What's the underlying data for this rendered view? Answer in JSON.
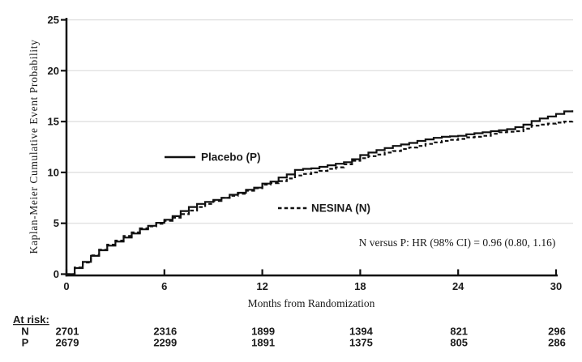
{
  "chart_data": {
    "type": "line",
    "subtype": "kaplan-meier-step",
    "title": "",
    "ylabel": "Kaplan-Meier Cumulative Event Probability",
    "xlabel": "Months from Randomization",
    "ylim": [
      0,
      25
    ],
    "xlim": [
      0,
      30
    ],
    "yticks": [
      0,
      5,
      10,
      15,
      20,
      25
    ],
    "xticks": [
      0,
      6,
      12,
      18,
      24,
      30
    ],
    "grid": "horizontal",
    "legend_position": "inside-plot",
    "annotation": "N versus P: HR (98% CI) = 0.96 (0.80, 1.16)",
    "colors": {
      "line": "#111111",
      "grid": "#dcdcdc",
      "text": "#1a1a1a",
      "background": "#ffffff"
    },
    "series": [
      {
        "name": "Placebo (P)",
        "line_style": "solid",
        "points": [
          [
            0,
            0
          ],
          [
            0.5,
            0.6
          ],
          [
            1,
            1.2
          ],
          [
            1.5,
            1.8
          ],
          [
            2,
            2.35
          ],
          [
            2.5,
            2.8
          ],
          [
            3,
            3.2
          ],
          [
            3.5,
            3.6
          ],
          [
            4,
            4.0
          ],
          [
            4.5,
            4.4
          ],
          [
            5,
            4.75
          ],
          [
            5.5,
            5.05
          ],
          [
            6,
            5.35
          ],
          [
            6.5,
            5.7
          ],
          [
            7,
            6.2
          ],
          [
            7.5,
            6.6
          ],
          [
            8,
            6.9
          ],
          [
            8.5,
            7.1
          ],
          [
            9,
            7.3
          ],
          [
            9.5,
            7.5
          ],
          [
            10,
            7.8
          ],
          [
            10.5,
            8.0
          ],
          [
            11,
            8.3
          ],
          [
            11.5,
            8.5
          ],
          [
            12,
            8.9
          ],
          [
            12.5,
            9.1
          ],
          [
            13,
            9.5
          ],
          [
            13.5,
            9.8
          ],
          [
            14,
            10.25
          ],
          [
            14.5,
            10.35
          ],
          [
            15,
            10.4
          ],
          [
            15.5,
            10.55
          ],
          [
            16,
            10.7
          ],
          [
            16.5,
            10.85
          ],
          [
            17,
            11.0
          ],
          [
            17.5,
            11.3
          ],
          [
            18,
            11.7
          ],
          [
            18.5,
            11.95
          ],
          [
            19,
            12.2
          ],
          [
            19.5,
            12.4
          ],
          [
            20,
            12.6
          ],
          [
            20.5,
            12.75
          ],
          [
            21,
            12.9
          ],
          [
            21.5,
            13.1
          ],
          [
            22,
            13.25
          ],
          [
            22.5,
            13.4
          ],
          [
            23,
            13.5
          ],
          [
            23.5,
            13.55
          ],
          [
            24,
            13.6
          ],
          [
            24.5,
            13.75
          ],
          [
            25,
            13.85
          ],
          [
            25.5,
            13.95
          ],
          [
            26,
            14.05
          ],
          [
            26.5,
            14.15
          ],
          [
            27,
            14.25
          ],
          [
            27.5,
            14.45
          ],
          [
            28,
            14.7
          ],
          [
            28.5,
            15.05
          ],
          [
            29,
            15.3
          ],
          [
            29.5,
            15.5
          ],
          [
            30,
            15.75
          ],
          [
            30.5,
            16.0
          ],
          [
            31,
            16.1
          ]
        ]
      },
      {
        "name": "NESINA (N)",
        "line_style": "dashed",
        "points": [
          [
            0,
            0
          ],
          [
            0.5,
            0.65
          ],
          [
            1,
            1.15
          ],
          [
            1.5,
            1.85
          ],
          [
            2,
            2.4
          ],
          [
            2.5,
            2.9
          ],
          [
            3,
            3.3
          ],
          [
            3.5,
            3.75
          ],
          [
            4,
            4.1
          ],
          [
            4.5,
            4.5
          ],
          [
            5,
            4.7
          ],
          [
            5.5,
            4.95
          ],
          [
            6,
            5.25
          ],
          [
            6.5,
            5.55
          ],
          [
            7,
            5.9
          ],
          [
            7.5,
            6.25
          ],
          [
            8,
            6.6
          ],
          [
            8.5,
            6.9
          ],
          [
            9,
            7.2
          ],
          [
            9.5,
            7.5
          ],
          [
            10,
            7.7
          ],
          [
            10.5,
            7.9
          ],
          [
            11,
            8.2
          ],
          [
            11.5,
            8.45
          ],
          [
            12,
            8.8
          ],
          [
            12.5,
            8.95
          ],
          [
            13,
            9.15
          ],
          [
            13.5,
            9.4
          ],
          [
            14,
            9.7
          ],
          [
            14.5,
            9.85
          ],
          [
            15,
            10.0
          ],
          [
            15.5,
            10.15
          ],
          [
            16,
            10.35
          ],
          [
            16.5,
            10.5
          ],
          [
            17,
            10.8
          ],
          [
            17.5,
            11.15
          ],
          [
            18,
            11.4
          ],
          [
            18.5,
            11.6
          ],
          [
            19,
            11.75
          ],
          [
            19.5,
            11.95
          ],
          [
            20,
            12.1
          ],
          [
            20.5,
            12.3
          ],
          [
            21,
            12.45
          ],
          [
            21.5,
            12.6
          ],
          [
            22,
            12.8
          ],
          [
            22.5,
            12.95
          ],
          [
            23,
            13.1
          ],
          [
            23.5,
            13.2
          ],
          [
            24,
            13.3
          ],
          [
            24.5,
            13.45
          ],
          [
            25,
            13.5
          ],
          [
            25.5,
            13.6
          ],
          [
            26,
            13.8
          ],
          [
            26.5,
            13.95
          ],
          [
            27,
            14.0
          ],
          [
            27.5,
            14.05
          ],
          [
            28,
            14.3
          ],
          [
            28.5,
            14.6
          ],
          [
            29,
            14.7
          ],
          [
            29.5,
            14.8
          ],
          [
            30,
            14.9
          ],
          [
            30.5,
            15.0
          ],
          [
            31,
            15.1
          ]
        ]
      }
    ],
    "at_risk": {
      "label": "At risk:",
      "timepoints": [
        0,
        6,
        12,
        18,
        24,
        30
      ],
      "rows": [
        {
          "label": "N",
          "values": [
            "2701",
            "2316",
            "1899",
            "1394",
            "821",
            "296"
          ]
        },
        {
          "label": "P",
          "values": [
            "2679",
            "2299",
            "1891",
            "1375",
            "805",
            "286"
          ]
        }
      ]
    }
  }
}
